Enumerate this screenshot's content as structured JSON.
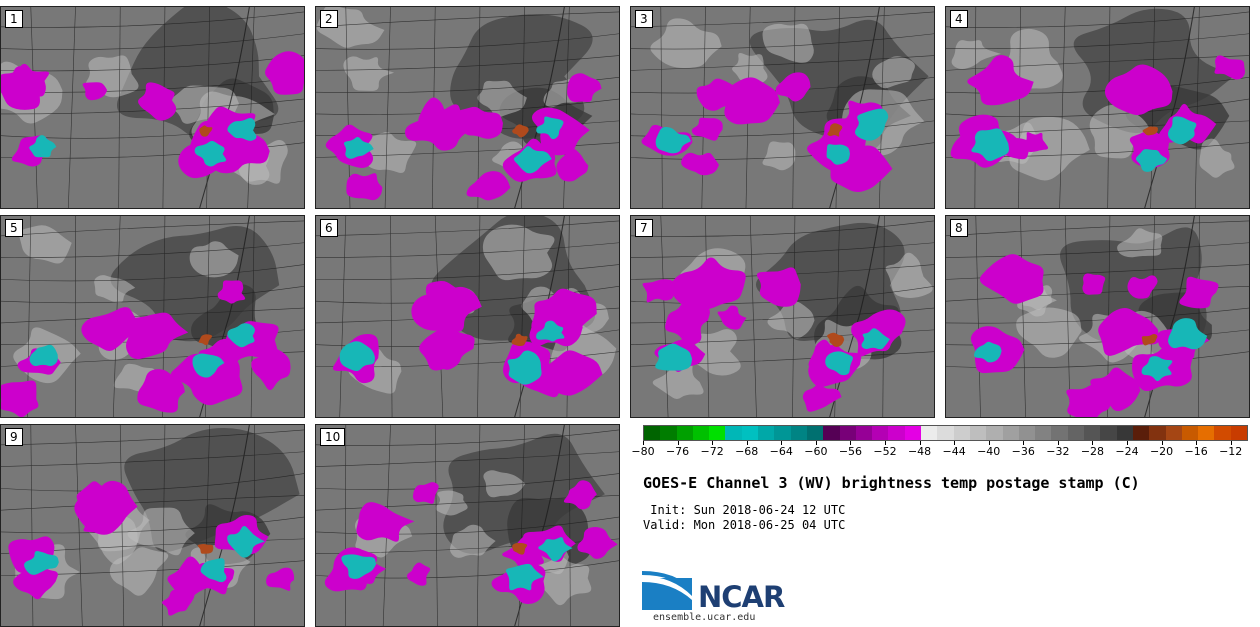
{
  "panels": [
    {
      "label": "1"
    },
    {
      "label": "2"
    },
    {
      "label": "3"
    },
    {
      "label": "4"
    },
    {
      "label": "5"
    },
    {
      "label": "6"
    },
    {
      "label": "7"
    },
    {
      "label": "8"
    },
    {
      "label": "9"
    },
    {
      "label": "10"
    }
  ],
  "colorbar": {
    "colors": [
      "#006400",
      "#007d00",
      "#00a000",
      "#00c000",
      "#00e000",
      "#00b7b7",
      "#00c0c0",
      "#00a8a8",
      "#009696",
      "#008484",
      "#007070",
      "#550055",
      "#780078",
      "#960096",
      "#b400b4",
      "#cc00cc",
      "#e400e4",
      "#ececec",
      "#dcdcdc",
      "#cdcdcd",
      "#bebebe",
      "#afafaf",
      "#a0a0a0",
      "#919191",
      "#828282",
      "#737373",
      "#646464",
      "#555555",
      "#464646",
      "#373737",
      "#5a1e0a",
      "#82320f",
      "#a54614",
      "#c85a00",
      "#e66e00",
      "#d24b00",
      "#c83c00"
    ],
    "vmin": -80,
    "vmax": -10,
    "ticks": [
      -80,
      -76,
      -72,
      -68,
      -64,
      -60,
      -56,
      -52,
      -48,
      -44,
      -40,
      -36,
      -32,
      -28,
      -24,
      -20,
      -16,
      -12
    ]
  },
  "title": "GOES-E Channel 3 (WV) brightness temp postage stamp (C)",
  "init": " Init: Sun 2018-06-24 12 UTC",
  "valid": "Valid: Mon 2018-06-25 04 UTC",
  "logo": {
    "text": "NCAR",
    "url": "ensemble.ucar.edu"
  },
  "colors": {
    "magenta": "#cc00cc",
    "teal": "#17b7b7",
    "rust": "#b04a1c",
    "gray": "#7a7a7a"
  }
}
